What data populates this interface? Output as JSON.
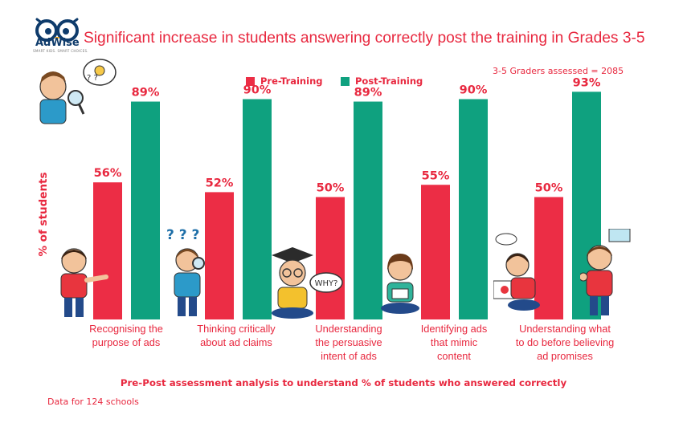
{
  "brand": {
    "name": "AdWise",
    "tagline": "SMART KIDS. SMART CHOICES."
  },
  "title": "Significant increase in students answering correctly post the training in Grades 3-5",
  "note": "3-5 Graders assessed = 2085",
  "legend": {
    "pre": "Pre-Training",
    "post": "Post-Training"
  },
  "colors": {
    "pre": "#ec2d45",
    "post": "#0fa17f",
    "text": "#e8283f"
  },
  "deco_text": {
    "why": "WHY?"
  },
  "chart_data": {
    "type": "bar",
    "ylabel": "% of students",
    "xlabel": "Pre-Post assessment analysis to understand % of students who answered correctly",
    "categories": [
      "Recognising the\npurpose of ads",
      "Thinking critically\nabout ad claims",
      "Understanding\nthe persuasive\nintent of ads",
      "Identifying ads\nthat mimic\ncontent",
      "Understanding what\nto do before believing\nad promises"
    ],
    "series": [
      {
        "name": "Pre-Training",
        "values": [
          56,
          52,
          50,
          55,
          50
        ],
        "labels": [
          "56%",
          "52%",
          "50%",
          "55%",
          "50%"
        ]
      },
      {
        "name": "Post-Training",
        "values": [
          89,
          90,
          89,
          90,
          93
        ],
        "labels": [
          "89%",
          "90%",
          "89%",
          "90%",
          "93%"
        ]
      }
    ],
    "ylim": [
      0,
      100
    ],
    "grid": false,
    "legend_position": "top-center"
  },
  "source": "Data for 124 schools"
}
